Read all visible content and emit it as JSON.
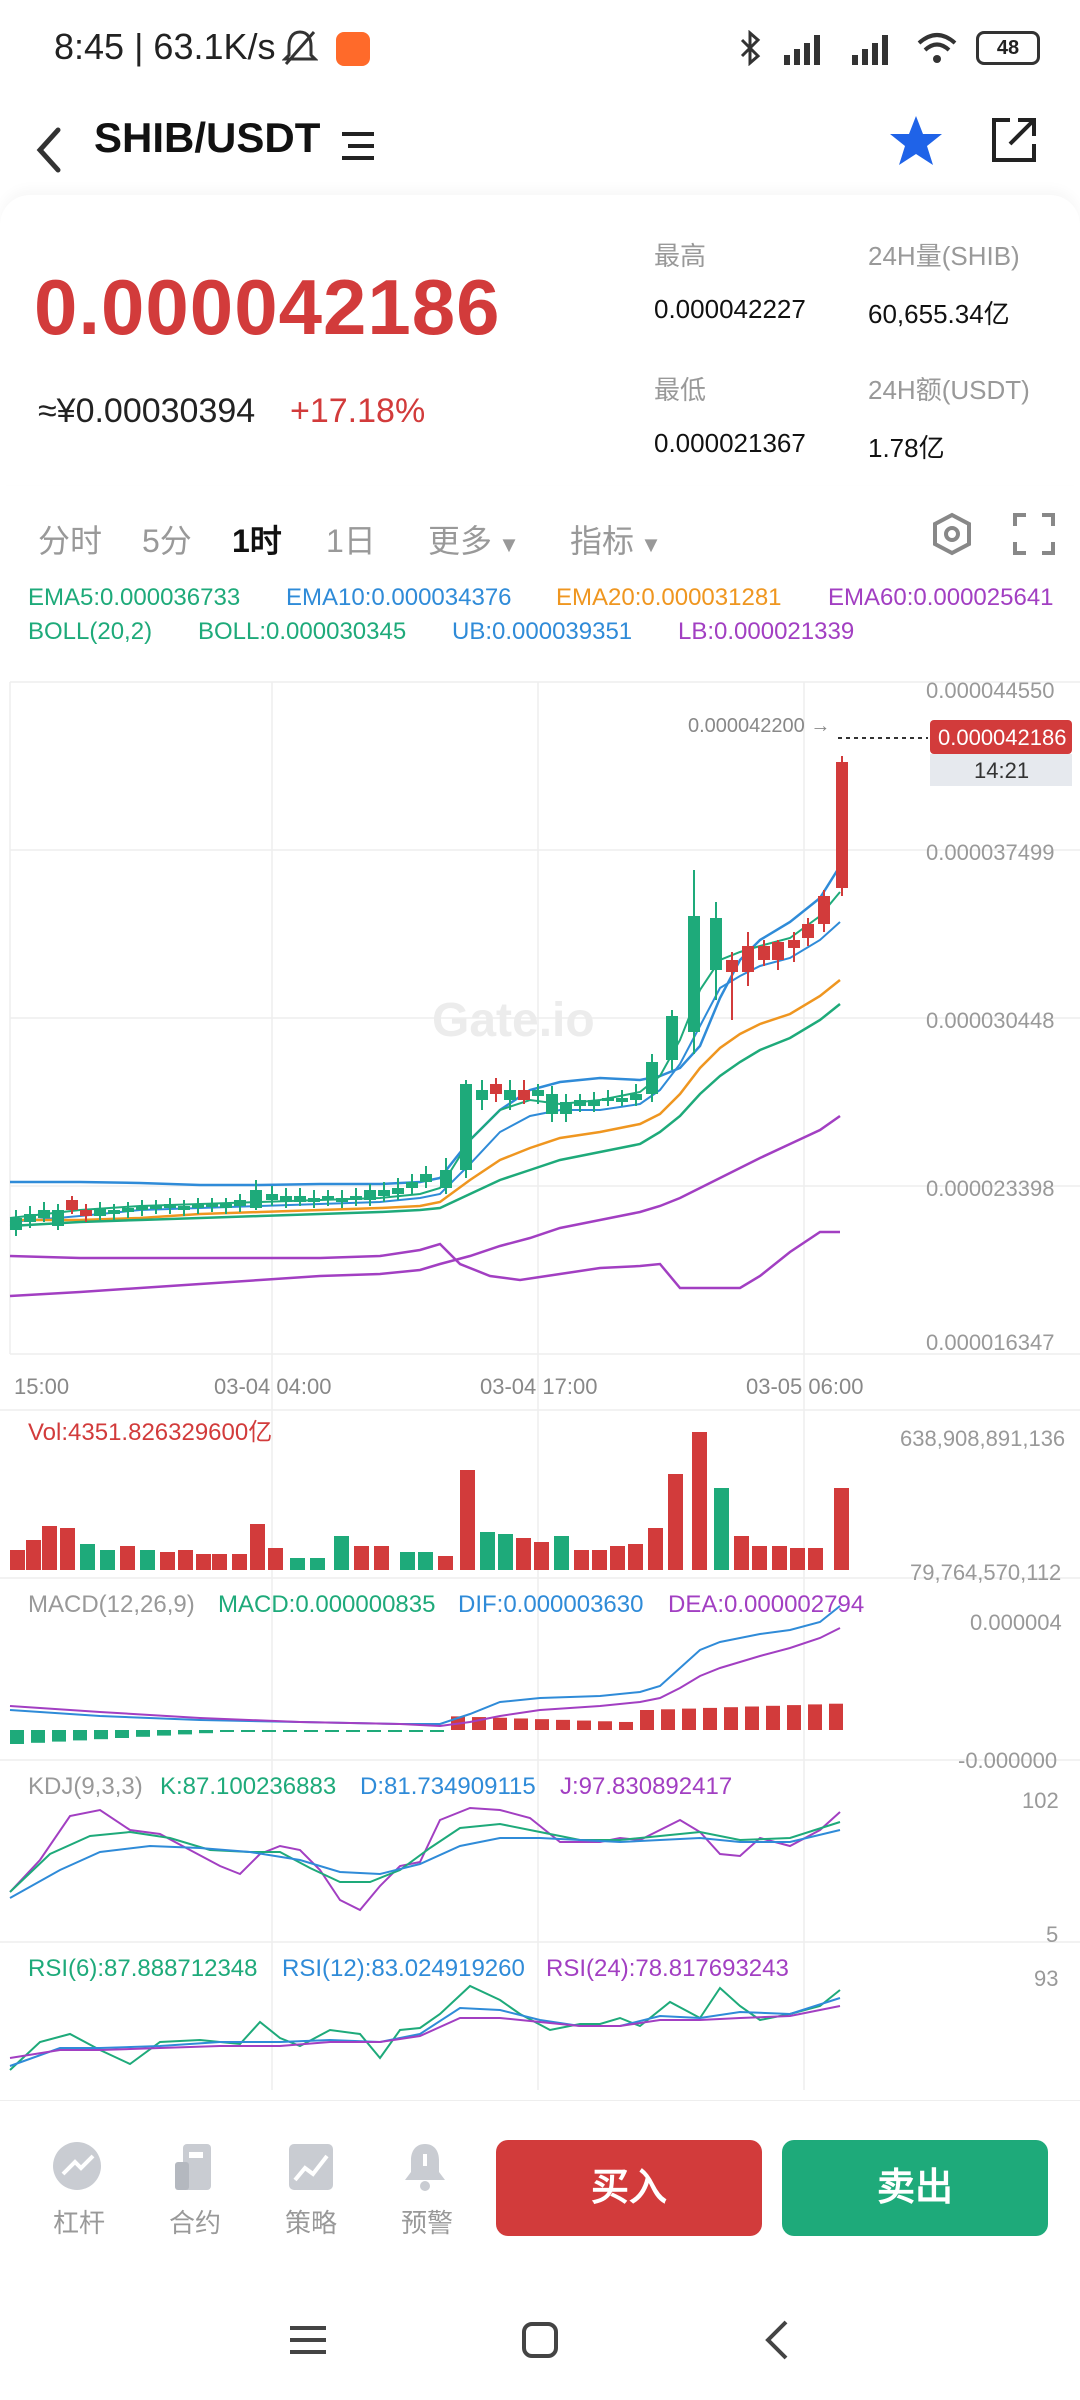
{
  "status_bar": {
    "time": "8:45 | 63.1K/s",
    "battery": "48"
  },
  "header": {
    "pair": "SHIB/USDT"
  },
  "price": {
    "last": "0.000042186",
    "cny": "≈¥0.00030394",
    "change": "+17.18%"
  },
  "stats": {
    "high_label": "最高",
    "high_value": "0.000042227",
    "vol_label": "24H量(SHIB)",
    "vol_value": "60,655.34亿",
    "low_label": "最低",
    "low_value": "0.000021367",
    "amt_label": "24H额(USDT)",
    "amt_value": "1.78亿"
  },
  "tabs": [
    "分时",
    "5分",
    "1时",
    "1日",
    "更多",
    "指标"
  ],
  "indicators": {
    "ema5": "EMA5:0.000036733",
    "ema10": "EMA10:0.000034376",
    "ema20": "EMA20:0.000031281",
    "ema60": "EMA60:0.000025641",
    "boll_param": "BOLL(20,2)",
    "boll": "BOLL:0.000030345",
    "ub": "UB:0.000039351",
    "lb": "LB:0.000021339"
  },
  "chart": {
    "y_ticks": [
      "0.000044550",
      "0.000037499",
      "0.000030448",
      "0.000023398",
      "0.000016347"
    ],
    "x_ticks": [
      "15:00",
      "03-04 04:00",
      "03-04 17:00",
      "03-05 06:00"
    ],
    "price_tag": "0.000042186",
    "time_tag": "14:21",
    "high_mark": "0.000042200 →",
    "watermark": "Gate.io"
  },
  "volume": {
    "label": "Vol:4351.826329600亿",
    "max": "638,908,891,136",
    "min": "79,764,570,112"
  },
  "macd": {
    "param": "MACD(12,26,9)",
    "macd": "MACD:0.000000835",
    "dif": "DIF:0.000003630",
    "dea": "DEA:0.000002794",
    "max": "0.000004",
    "min": "-0.000000"
  },
  "kdj": {
    "param": "KDJ(9,3,3)",
    "k": "K:87.100236883",
    "d": "D:81.734909115",
    "j": "J:97.830892417",
    "max": "102",
    "min": "5"
  },
  "rsi": {
    "r6": "RSI(6):87.888712348",
    "r12": "RSI(12):83.024919260",
    "r24": "RSI(24):78.817693243",
    "max": "93"
  },
  "bottom_bar": {
    "items": [
      "杠杆",
      "合约",
      "策略",
      "预警"
    ],
    "buy": "买入",
    "sell": "卖出"
  },
  "colors": {
    "up": "#d23b3b",
    "down": "#1eaa7a",
    "blue": "#2f8bd8",
    "orange": "#ef9620",
    "purple": "#a23fc2"
  }
}
